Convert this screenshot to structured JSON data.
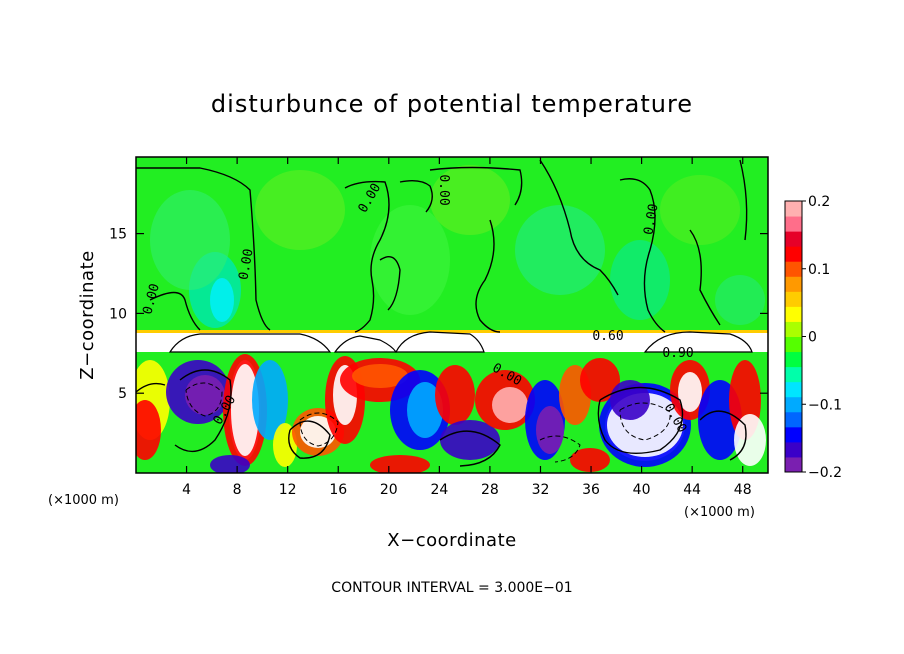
{
  "chart_data": {
    "type": "heatmap",
    "title": "disturbunce of potential temperature",
    "xlabel": "X−coordinate",
    "ylabel": "Z−coordinate",
    "x_unit_left": "(×1000 m)",
    "x_unit_right": "(×1000 m)",
    "x_ticks": [
      4,
      8,
      12,
      16,
      20,
      24,
      28,
      32,
      36,
      40,
      44,
      48
    ],
    "y_ticks": [
      5,
      10,
      15
    ],
    "xlim": [
      0,
      50
    ],
    "ylim": [
      0,
      19.8
    ],
    "colorbar": {
      "ticks": [
        "0.2",
        "0.1",
        "0",
        "−0.1",
        "−0.2"
      ],
      "range": [
        -0.2,
        0.2
      ],
      "colors": [
        "#7a1fb0",
        "#3a00c8",
        "#0000ff",
        "#0066ff",
        "#00aaff",
        "#00e5ff",
        "#00ffaa",
        "#00ff40",
        "#55ff00",
        "#aaff00",
        "#ffff00",
        "#ffcc00",
        "#ff9900",
        "#ff5500",
        "#ff0000",
        "#e60028",
        "#ff6e8a",
        "#ffb0b0"
      ]
    },
    "contour_labels": [
      "0.00",
      "0.00",
      "0.00",
      "0.00",
      "0.00",
      "0.60",
      "0.90",
      "0.00",
      "0.00",
      "0.00"
    ],
    "grid": false,
    "contour_interval_text": "CONTOUR INTERVAL = 3.000E−01"
  }
}
